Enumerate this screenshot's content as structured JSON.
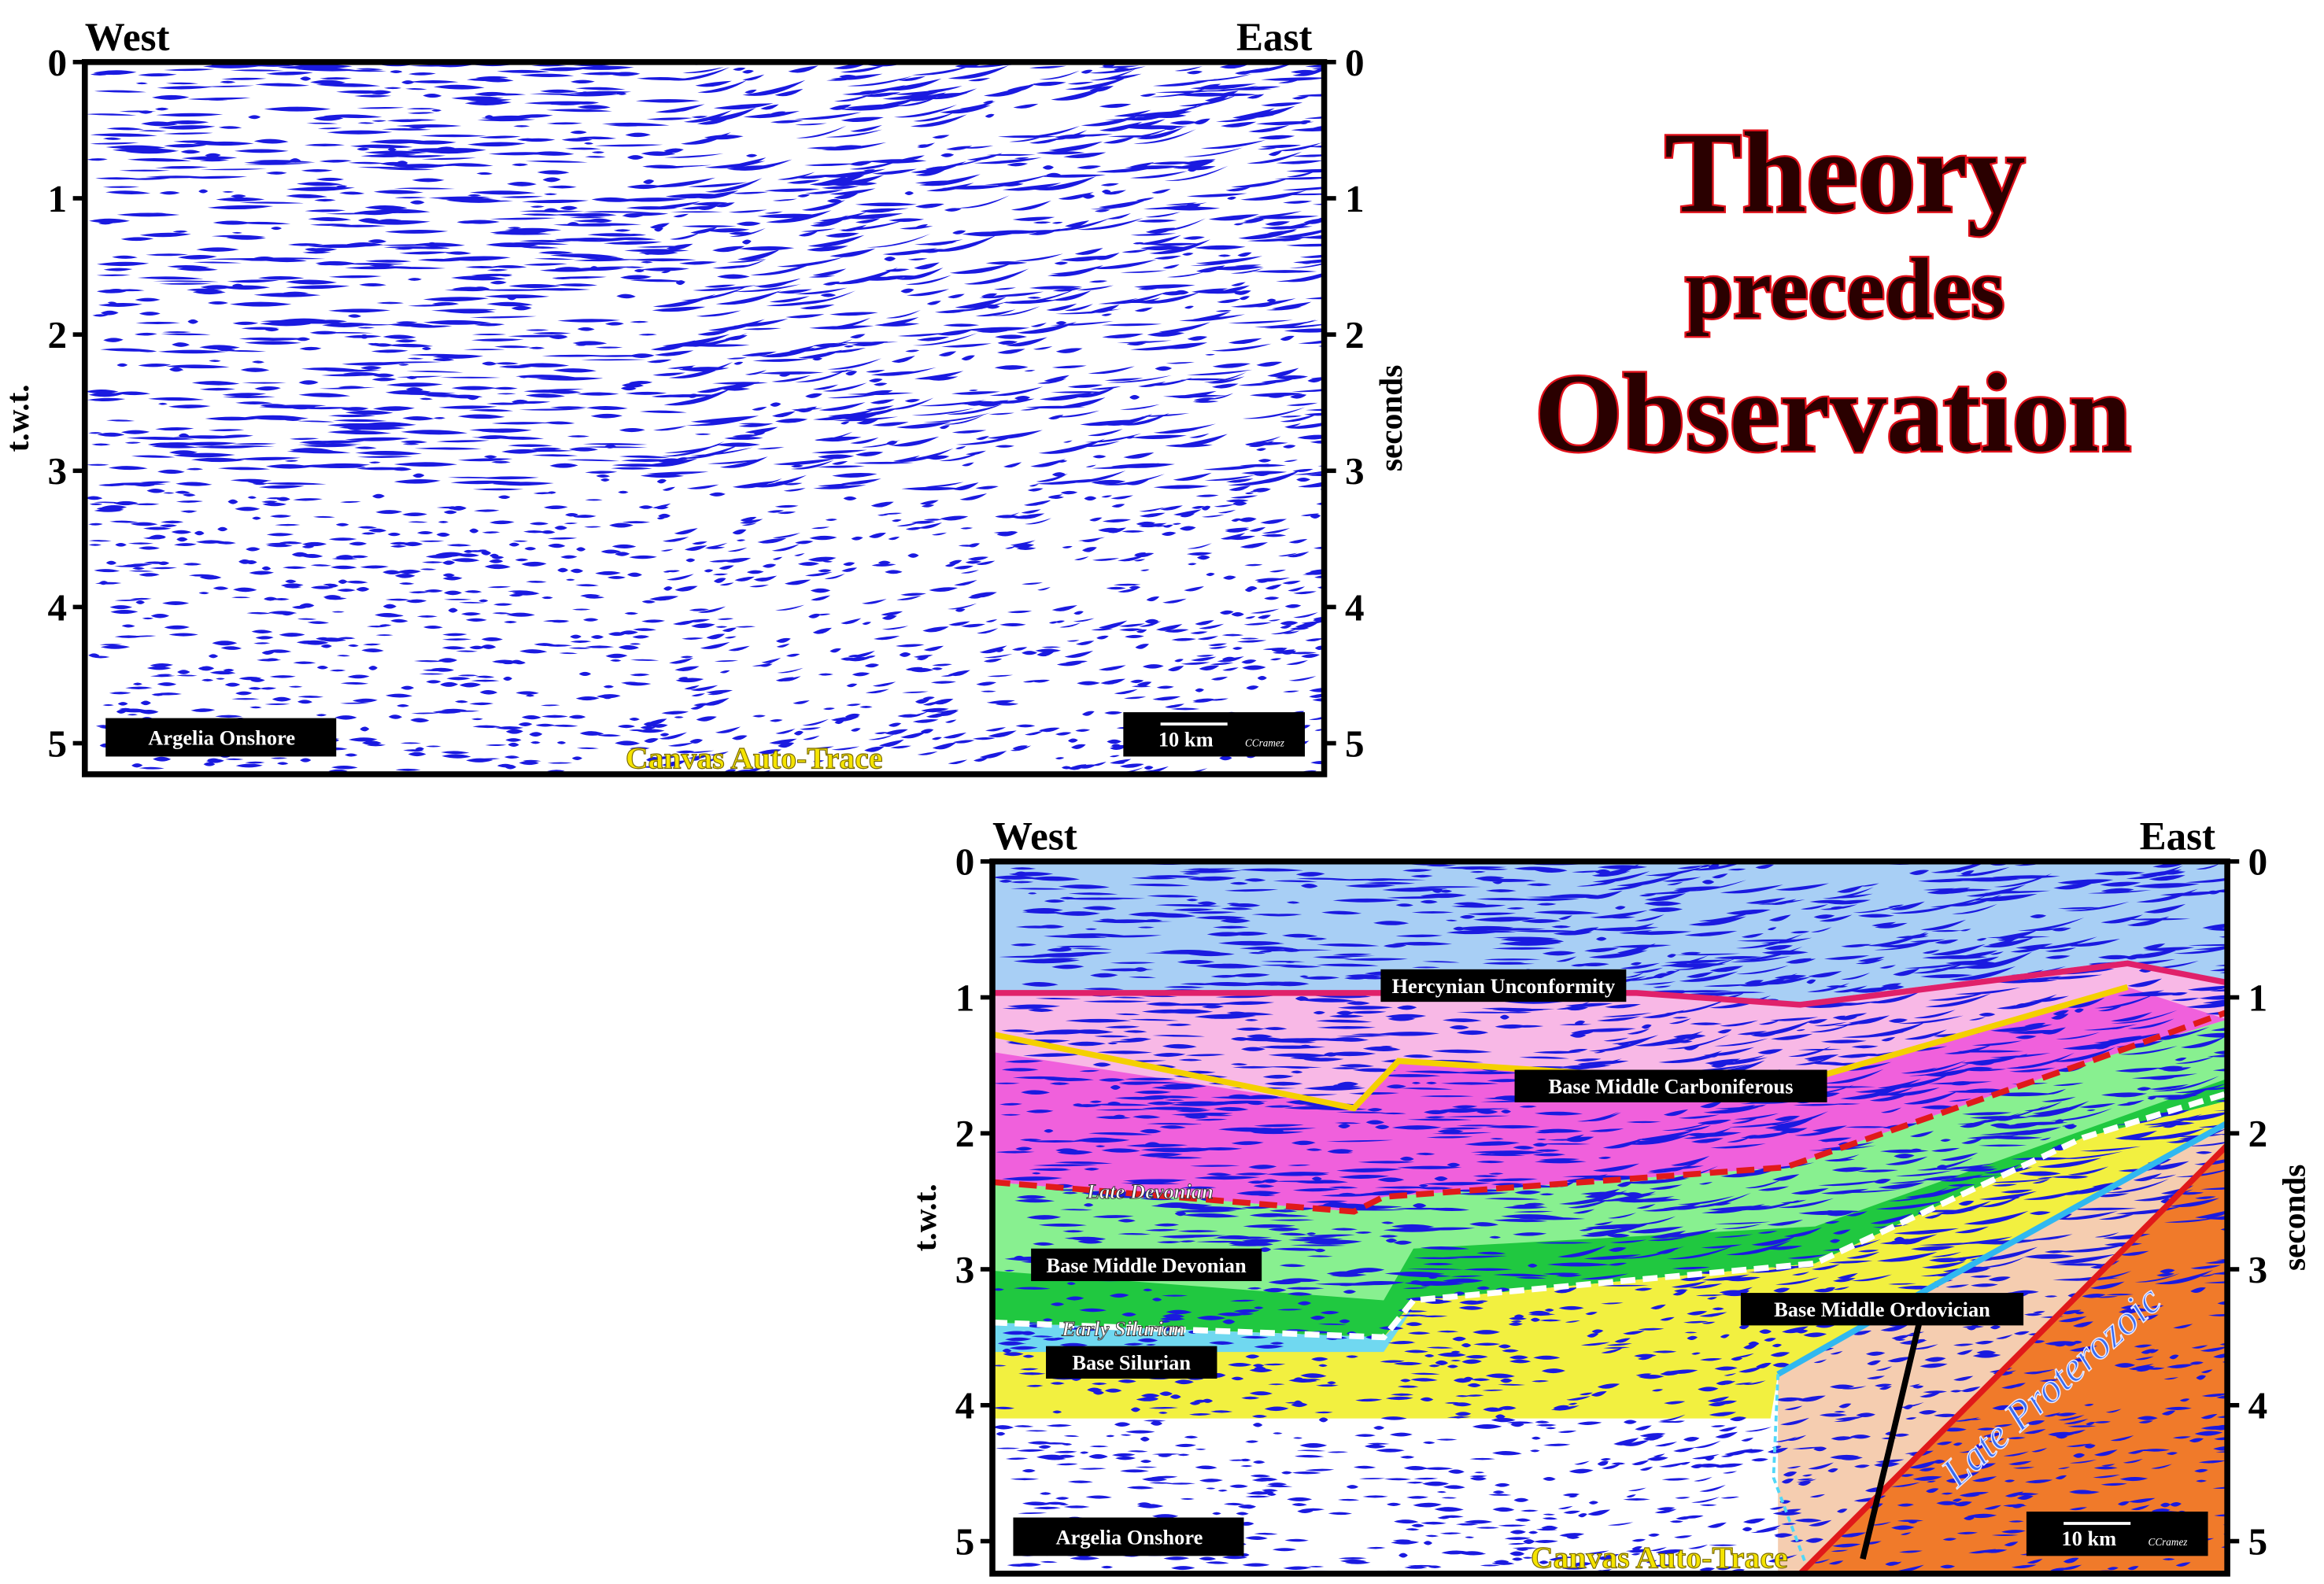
{
  "title": {
    "lines": [
      "Theory",
      "precedes",
      "Observation"
    ]
  },
  "panels": [
    {
      "west": "West",
      "east": "East",
      "left_axis_label": "t.w.t.",
      "right_axis_label": "seconds",
      "ticks": [
        0,
        1,
        2,
        3,
        4,
        5
      ],
      "location": "Argelia Onshore",
      "scale_bar": "10 km",
      "credit": "CCramez",
      "watermark": "Canvas Auto-Trace"
    },
    {
      "west": "West",
      "east": "East",
      "left_axis_label": "t.w.t.",
      "right_axis_label": "seconds",
      "ticks": [
        0,
        1,
        2,
        3,
        4,
        5
      ],
      "location": "Argelia Onshore",
      "scale_bar": "10 km",
      "credit": "CCramez",
      "watermark": "Canvas Auto-Trace",
      "horizons": [
        "Hercynian Unconformity",
        "Base Middle  Carboniferous",
        "Late Devonian",
        "Base Middle Devonian",
        "Early Silurian",
        "Base Silurian",
        "Base Middle  Ordovician",
        "Late Proterozoic"
      ]
    }
  ]
}
